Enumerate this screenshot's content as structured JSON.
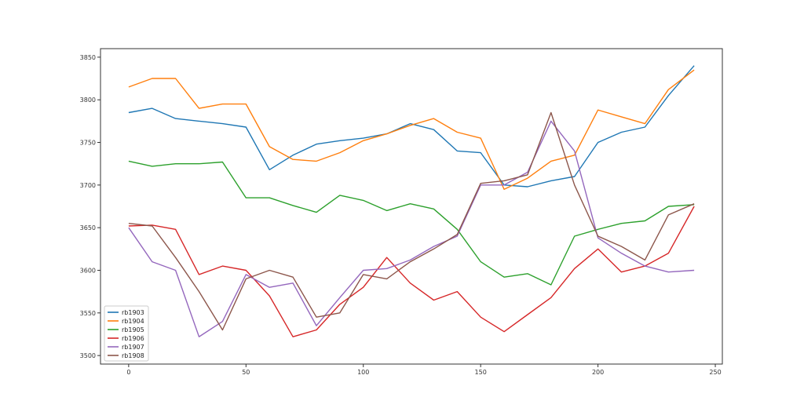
{
  "chart_data": {
    "type": "line",
    "title": "",
    "xlabel": "",
    "ylabel": "",
    "xlim": [
      -12,
      253
    ],
    "ylim": [
      3490,
      3860
    ],
    "xticks": [
      0,
      50,
      100,
      150,
      200,
      250
    ],
    "yticks": [
      3500,
      3550,
      3600,
      3650,
      3700,
      3750,
      3800,
      3850
    ],
    "grid": false,
    "legend_position": "lower-left",
    "x": [
      0,
      10,
      20,
      30,
      40,
      50,
      60,
      70,
      80,
      90,
      100,
      110,
      120,
      130,
      140,
      150,
      160,
      170,
      180,
      190,
      200,
      210,
      220,
      230,
      241
    ],
    "series": [
      {
        "name": "rb1903",
        "color": "#1f77b4",
        "values": [
          3785,
          3790,
          3778,
          3775,
          3772,
          3768,
          3718,
          3735,
          3748,
          3752,
          3755,
          3760,
          3772,
          3765,
          3740,
          3738,
          3700,
          3698,
          3705,
          3710,
          3750,
          3762,
          3768,
          3805,
          3840
        ]
      },
      {
        "name": "rb1904",
        "color": "#ff7f0e",
        "values": [
          3815,
          3825,
          3825,
          3790,
          3795,
          3795,
          3745,
          3730,
          3728,
          3738,
          3752,
          3760,
          3770,
          3778,
          3762,
          3755,
          3695,
          3708,
          3728,
          3735,
          3788,
          3780,
          3772,
          3812,
          3835
        ]
      },
      {
        "name": "rb1905",
        "color": "#2ca02c",
        "values": [
          3728,
          3722,
          3725,
          3725,
          3727,
          3685,
          3685,
          3676,
          3668,
          3688,
          3682,
          3670,
          3678,
          3672,
          3648,
          3610,
          3592,
          3596,
          3583,
          3640,
          3648,
          3655,
          3658,
          3675,
          3677
        ]
      },
      {
        "name": "rb1906",
        "color": "#d62728",
        "values": [
          3652,
          3653,
          3648,
          3595,
          3605,
          3600,
          3570,
          3522,
          3530,
          3560,
          3580,
          3615,
          3585,
          3565,
          3575,
          3545,
          3528,
          3548,
          3568,
          3602,
          3625,
          3598,
          3605,
          3620,
          3675
        ]
      },
      {
        "name": "rb1907",
        "color": "#9467bd",
        "values": [
          3650,
          3610,
          3600,
          3522,
          3540,
          3595,
          3580,
          3585,
          3535,
          3568,
          3600,
          3602,
          3612,
          3628,
          3640,
          3700,
          3700,
          3715,
          3775,
          3740,
          3638,
          3620,
          3605,
          3598,
          3600
        ]
      },
      {
        "name": "rb1908",
        "color": "#8c564b",
        "values": [
          3655,
          3652,
          3615,
          3575,
          3530,
          3590,
          3600,
          3592,
          3545,
          3550,
          3595,
          3590,
          3610,
          3625,
          3642,
          3702,
          3705,
          3712,
          3785,
          3700,
          3640,
          3628,
          3612,
          3665,
          3678
        ]
      }
    ]
  }
}
